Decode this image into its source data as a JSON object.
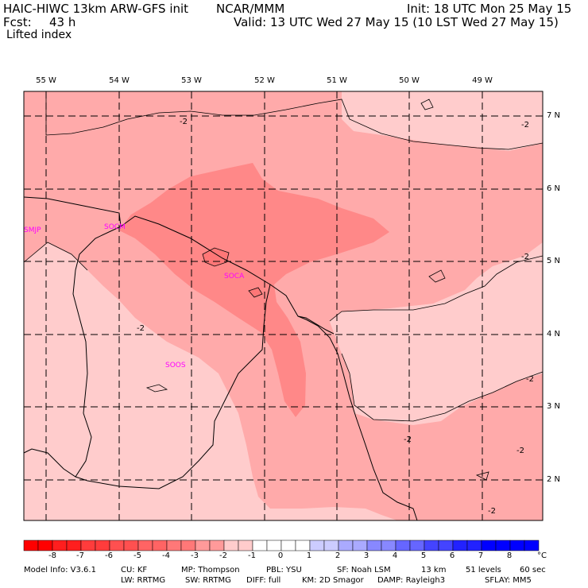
{
  "header": {
    "model": "HAIC-HIWC 13km ARW-GFS init",
    "org": "NCAR/MMM",
    "init": "Init: 18 UTC Mon 25 May 15",
    "fcst_label": "Fcst:",
    "fcst_value": "43 h",
    "valid": "Valid: 13 UTC Wed 27 May 15 (10 LST Wed 27 May 15)",
    "field": "Lifted index"
  },
  "map": {
    "lon_labels": [
      "55 W",
      "54 W",
      "53 W",
      "52 W",
      "51 W",
      "50 W",
      "49 W"
    ],
    "lat_labels": [
      "7 N",
      "6 N",
      "5 N",
      "4 N",
      "3 N",
      "2 N"
    ],
    "stations": [
      "SMJP",
      "SOCM",
      "SOCA",
      "SOOS"
    ],
    "contour_label": "-2",
    "colors": {
      "c_m2_m1": "#ffcccc",
      "c_m3_m2": "#ffaaaa",
      "c_m4_m3": "#ff8888",
      "c_m5_m4": "#ff7777"
    }
  },
  "colorbar": {
    "ticks": [
      "-8",
      "-7",
      "-6",
      "-5",
      "-4",
      "-3",
      "-2",
      "-1",
      "0",
      "1",
      "2",
      "3",
      "4",
      "5",
      "6",
      "7",
      "8"
    ],
    "unit": "°C",
    "colors": [
      "#ff0000",
      "#ff1e1e",
      "#ff3c3c",
      "#ff5050",
      "#ff6464",
      "#ff7878",
      "#ff9a9a",
      "#ffcccc",
      "#ffffff",
      "#ffffff",
      "#ccccff",
      "#aaaaff",
      "#8888ff",
      "#6666ff",
      "#4444ff",
      "#2222ff",
      "#0000ff"
    ]
  },
  "footer": {
    "line1": [
      "Model Info: V3.6.1",
      "CU: KF",
      "MP: Thompson",
      "PBL: YSU",
      "SF: Noah LSM",
      "13 km",
      "51 levels",
      "60 sec"
    ],
    "line2": [
      "LW: RRTMG",
      "SW: RRTMG",
      "DIFF: full",
      "KM: 2D Smagor",
      "DAMP: Rayleigh3",
      "SFLAY: MM5"
    ]
  }
}
